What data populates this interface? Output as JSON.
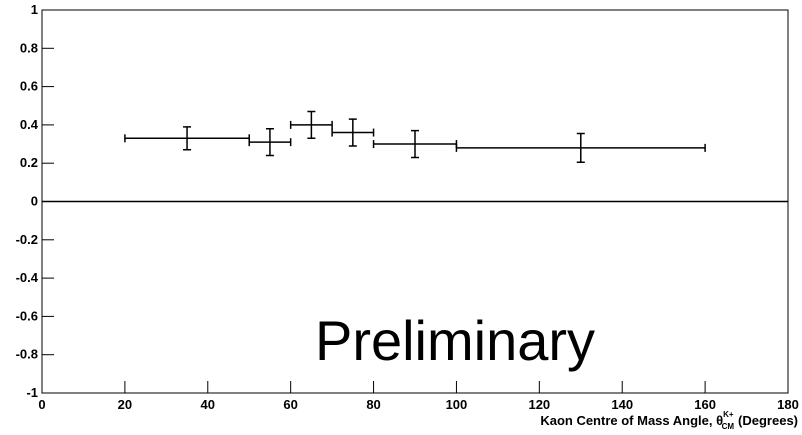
{
  "chart_data": {
    "type": "errorbar",
    "x": [
      35,
      55,
      65,
      75,
      90,
      130
    ],
    "x_errors": [
      15,
      5,
      5,
      5,
      10,
      30
    ],
    "values": [
      0.33,
      0.31,
      0.4,
      0.36,
      0.3,
      0.28
    ],
    "errors": [
      0.06,
      0.07,
      0.07,
      0.07,
      0.07,
      0.075
    ],
    "color": "#000000",
    "xlim": [
      0,
      180
    ],
    "xticks": [
      0,
      20,
      40,
      60,
      80,
      100,
      120,
      140,
      160,
      180
    ],
    "ylim": [
      -1,
      1
    ],
    "yticks": [
      -1,
      -0.8,
      -0.6,
      -0.4,
      -0.2,
      0,
      0.2,
      0.4,
      0.6,
      0.8,
      1
    ],
    "zero_line": true,
    "x_label": "Kaon Centre of Mass Angle, θ",
    "x_label_superscript": "K+",
    "x_label_subscript": "CM",
    "x_label_unit": "(Degrees)",
    "annotation": "Preliminary",
    "annotation_color": "#ff0000"
  }
}
